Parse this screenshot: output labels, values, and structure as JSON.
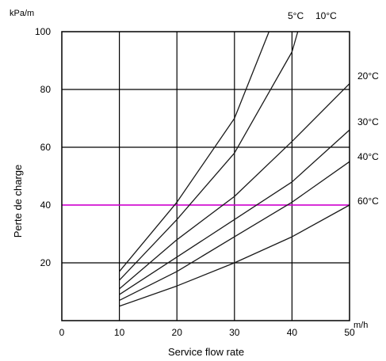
{
  "chart_data": {
    "type": "line",
    "title": "",
    "xlabel": "Service flow rate",
    "ylabel": "Perte de charge",
    "x_unit": "m/h",
    "y_unit": "kPa/m",
    "xlim": [
      0,
      50
    ],
    "ylim": [
      0,
      100
    ],
    "x_ticks": [
      "0",
      "10",
      "20",
      "30",
      "40",
      "50"
    ],
    "y_ticks": [
      "20",
      "40",
      "60",
      "80",
      "100"
    ],
    "grid": true,
    "reference_line": {
      "y": 40,
      "color": "#e000e0"
    },
    "series": [
      {
        "name": "5°C",
        "x": [
          10,
          20,
          30,
          36
        ],
        "y": [
          17,
          41,
          70,
          100
        ]
      },
      {
        "name": "10°C",
        "x": [
          10,
          20,
          30,
          40,
          41
        ],
        "y": [
          14,
          35,
          58,
          93,
          100
        ]
      },
      {
        "name": "20°C",
        "x": [
          10,
          20,
          30,
          40,
          50
        ],
        "y": [
          11,
          28,
          43,
          62,
          82
        ]
      },
      {
        "name": "30°C",
        "x": [
          10,
          20,
          30,
          40,
          50
        ],
        "y": [
          9,
          22,
          35,
          48,
          66
        ]
      },
      {
        "name": "40°C",
        "x": [
          10,
          20,
          30,
          40,
          50
        ],
        "y": [
          7,
          17,
          29,
          41,
          55
        ]
      },
      {
        "name": "60°C",
        "x": [
          10,
          20,
          30,
          40,
          50
        ],
        "y": [
          5,
          12,
          20,
          29,
          40
        ]
      }
    ]
  }
}
